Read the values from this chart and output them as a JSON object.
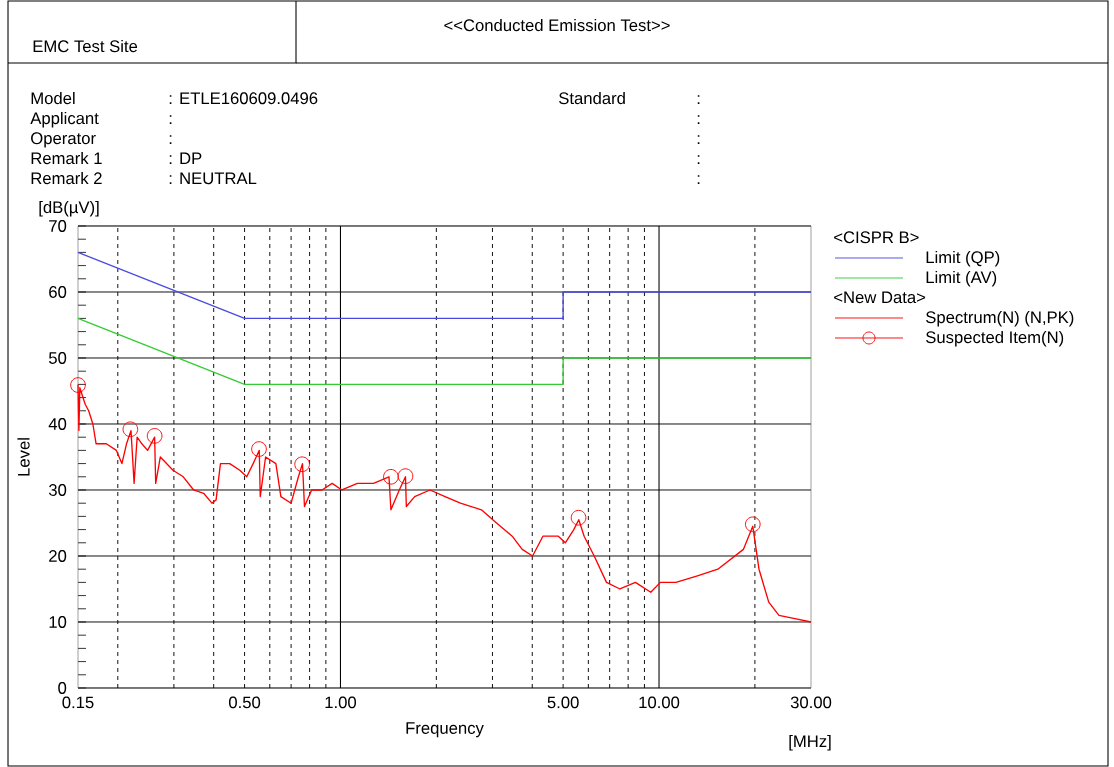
{
  "chart_data": {
    "type": "line",
    "title": "<<Conducted Emission Test>>",
    "xlabel": "Frequency",
    "ylabel": "Level",
    "annotations": [
      "EMC Test Site",
      "Model",
      ": ETLE160609.0496",
      "Applicant",
      ":",
      "Operator",
      ":",
      "Remark 1",
      ": DP",
      "Remark 2",
      ": NEUTRAL",
      "Standard",
      ":",
      ":",
      ":",
      ":",
      ":",
      "[dB(µV)]",
      "[MHz]",
      "<CISPR B>",
      "<New Data>"
    ],
    "log": "x",
    "xlim": [
      0.15,
      30
    ],
    "ylim": [
      0,
      70
    ],
    "xticks": [
      {
        "value": 0.15,
        "label": "0.15"
      },
      {
        "value": 0.5,
        "label": "0.50"
      },
      {
        "value": 1,
        "label": "1.00"
      },
      {
        "value": 5,
        "label": "5.00"
      },
      {
        "value": 10,
        "label": "10.00"
      },
      {
        "value": 30,
        "label": "30.00"
      }
    ],
    "yticks": [
      0,
      10,
      20,
      30,
      40,
      50,
      60,
      70
    ],
    "grid": true,
    "legend": "top right",
    "series": [
      {
        "name": "Limit (QP)",
        "color": "#4a4ae0",
        "x": [
          0.15,
          0.5,
          5,
          5,
          30
        ],
        "values": [
          66,
          56,
          56,
          60,
          60
        ]
      },
      {
        "name": "Limit (AV)",
        "color": "#33cc33",
        "x": [
          0.15,
          0.5,
          5,
          5,
          30
        ],
        "values": [
          56,
          46,
          46,
          50,
          50
        ]
      },
      {
        "name": "Spectrum(N) (N,PK)",
        "color": "#ff0000",
        "x": [
          0.15,
          0.151,
          0.152,
          0.158,
          0.162,
          0.167,
          0.171,
          0.184,
          0.198,
          0.206,
          0.213,
          0.22,
          0.225,
          0.23,
          0.238,
          0.248,
          0.261,
          0.263,
          0.272,
          0.298,
          0.321,
          0.346,
          0.372,
          0.395,
          0.407,
          0.42,
          0.449,
          0.483,
          0.508,
          0.532,
          0.556,
          0.56,
          0.582,
          0.627,
          0.65,
          0.7,
          0.738,
          0.76,
          0.771,
          0.812,
          0.875,
          0.942,
          1.01,
          1.13,
          1.27,
          1.42,
          1.44,
          1.53,
          1.6,
          1.61,
          1.71,
          1.91,
          2.13,
          2.38,
          2.77,
          3.09,
          3.46,
          3.72,
          4.01,
          4.32,
          4.83,
          5.08,
          5.4,
          5.6,
          5.82,
          6.26,
          6.84,
          7.54,
          8.43,
          9.42,
          10.1,
          11.3,
          13.2,
          15.3,
          18.4,
          19.7,
          20.6,
          22.1,
          23.8,
          26.7,
          30
        ],
        "values": [
          46,
          39,
          45.5,
          43,
          42,
          40,
          37,
          37,
          36,
          34,
          37,
          39,
          31,
          38,
          37,
          36,
          38,
          31,
          35,
          33,
          32,
          30,
          29.5,
          28,
          28.5,
          34,
          34,
          33,
          32,
          34,
          36,
          29,
          35,
          34,
          29,
          28,
          32,
          34,
          27.5,
          30,
          30,
          31,
          30,
          31,
          31,
          32,
          27,
          30,
          32,
          27.5,
          29,
          30,
          29,
          28,
          27,
          25,
          23,
          21,
          20,
          23,
          23,
          22,
          24,
          25.5,
          23,
          20,
          16,
          15,
          16,
          14.5,
          16,
          16,
          17,
          18,
          21,
          24.5,
          18,
          13,
          11,
          10.5,
          10
        ]
      },
      {
        "name": "Suspected Item(N)",
        "color": "#ff0000",
        "type": "scatter",
        "marker": "circle",
        "x": [
          0.15,
          0.219,
          0.261,
          0.555,
          0.758,
          1.44,
          1.6,
          5.59,
          19.7
        ],
        "values": [
          45.9,
          39.2,
          38.2,
          36.2,
          33.9,
          32,
          32.1,
          25.8,
          24.8
        ]
      }
    ]
  }
}
